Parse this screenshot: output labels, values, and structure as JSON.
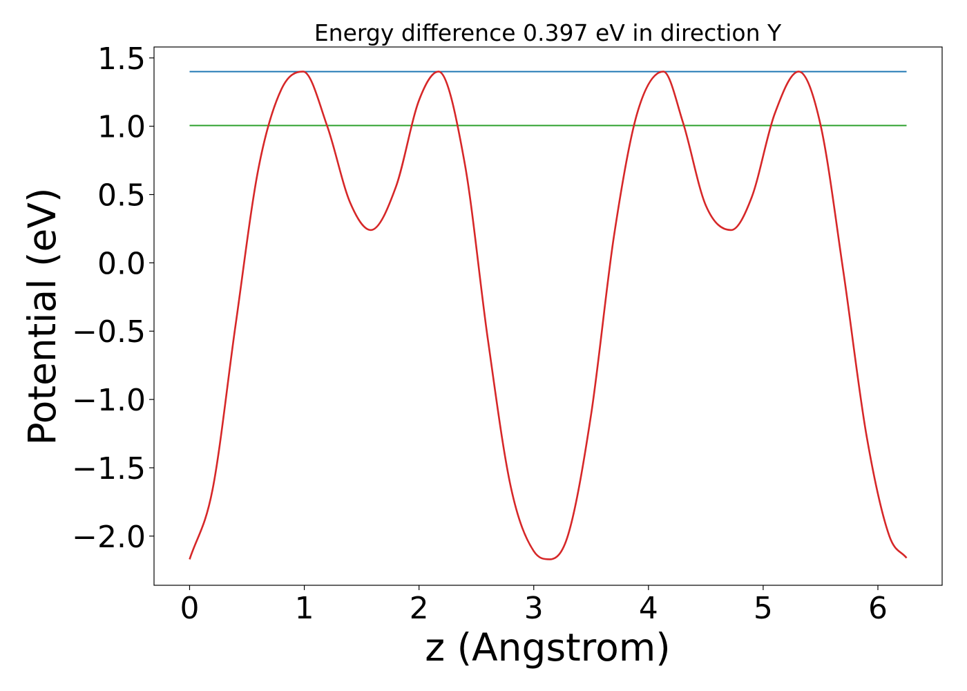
{
  "chart_data": {
    "type": "line",
    "title": "Energy difference 0.397 eV in direction Y",
    "xlabel": "z (Angstrom)",
    "ylabel": "Potential (eV)",
    "xlim": [
      -0.31,
      6.56
    ],
    "ylim": [
      -2.36,
      1.58
    ],
    "x_ticks": [
      0,
      1,
      2,
      3,
      4,
      5,
      6
    ],
    "x_tick_labels": [
      "0",
      "1",
      "2",
      "3",
      "4",
      "5",
      "6"
    ],
    "y_ticks": [
      1.5,
      1.0,
      0.5,
      0.0,
      -0.5,
      -1.0,
      -1.5,
      -2.0
    ],
    "y_tick_labels": [
      "1.5",
      "1.0",
      "0.5",
      "0.0",
      "−0.5",
      "−1.0",
      "−1.5",
      "−2.0"
    ],
    "grid": false,
    "legend": "none",
    "series": [
      {
        "color": "#1f77b4",
        "x": [
          0,
          6.25
        ],
        "values": [
          1.4,
          1.4
        ]
      },
      {
        "color": "#2ca02c",
        "x": [
          0,
          6.25
        ],
        "values": [
          1.005,
          1.005
        ]
      },
      {
        "color": "#d62728",
        "x": [
          0.0,
          0.2,
          0.4,
          0.6,
          0.8,
          0.99,
          1.2,
          1.4,
          1.58,
          1.8,
          2.0,
          2.17,
          2.4,
          2.6,
          2.8,
          3.0,
          3.14,
          3.3,
          3.5,
          3.7,
          3.9,
          4.13,
          4.3,
          4.5,
          4.72,
          4.9,
          5.1,
          5.31,
          5.5,
          5.7,
          5.9,
          6.1,
          6.25
        ],
        "values": [
          -2.17,
          -1.66,
          -0.46,
          0.69,
          1.27,
          1.4,
          1.0,
          0.44,
          0.24,
          0.56,
          1.19,
          1.4,
          0.72,
          -0.56,
          -1.64,
          -2.11,
          -2.17,
          -1.99,
          -1.11,
          0.2,
          1.09,
          1.4,
          1.03,
          0.42,
          0.24,
          0.48,
          1.09,
          1.4,
          1.01,
          -0.07,
          -1.26,
          -2.0,
          -2.16
        ]
      }
    ]
  }
}
